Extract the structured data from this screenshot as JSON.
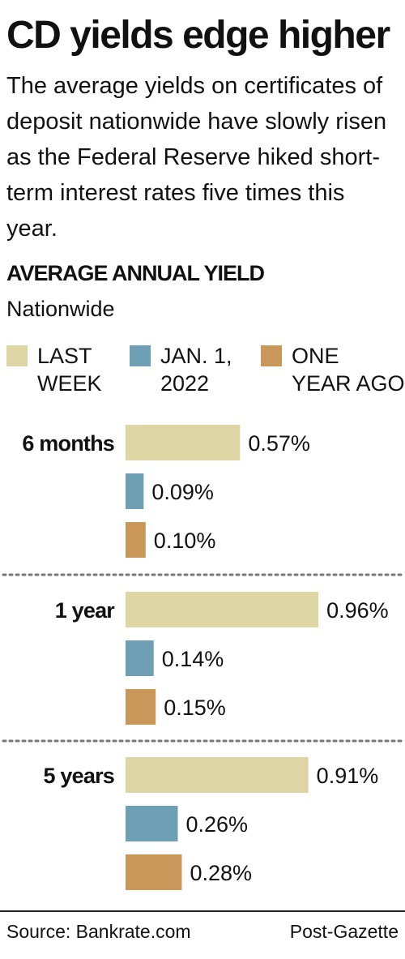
{
  "header": {
    "title": "CD yields edge higher",
    "subtitle": "The average yields on certificates of deposit nationwide have slowly risen as the Federal Reserve hiked short-term interest rates five times this year."
  },
  "chart_data": {
    "type": "bar",
    "orientation": "horizontal",
    "title": "AVERAGE ANNUAL YIELD",
    "subtitle": "Nationwide",
    "categories": [
      "6 months",
      "1 year",
      "5 years"
    ],
    "series": [
      {
        "name": "LAST\nWEEK",
        "color": "#ddd5a4",
        "values": [
          0.57,
          0.96,
          0.91
        ],
        "labels": [
          "0.57%",
          "0.96%",
          "0.91%"
        ]
      },
      {
        "name": "JAN. 1,\n2022",
        "color": "#6e9fb5",
        "values": [
          0.09,
          0.14,
          0.26
        ],
        "labels": [
          "0.09%",
          "0.14%",
          "0.26%"
        ]
      },
      {
        "name": "ONE\nYEAR AGO",
        "color": "#c99759",
        "values": [
          0.1,
          0.15,
          0.28
        ],
        "labels": [
          "0.10%",
          "0.15%",
          "0.28%"
        ]
      }
    ],
    "xlim": [
      0,
      1.0
    ],
    "grid": false,
    "legend_position": "top"
  },
  "footer": {
    "source": "Source: Bankrate.com",
    "credit": "Post-Gazette"
  }
}
